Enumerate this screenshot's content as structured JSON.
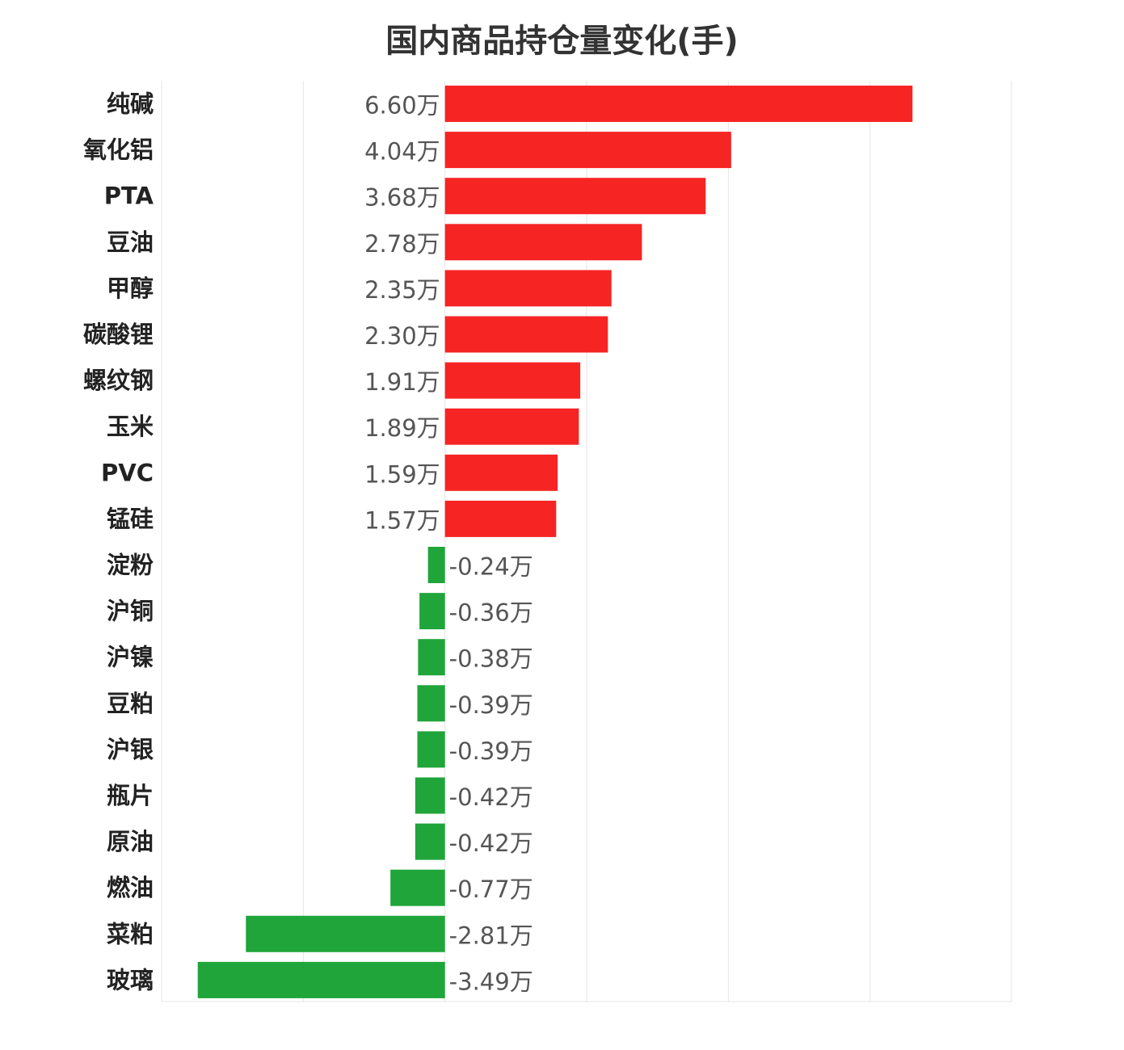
{
  "chart_data": {
    "type": "bar",
    "orientation": "horizontal",
    "title": "国内商品持仓量变化(手)",
    "xlabel": "",
    "ylabel": "",
    "unit_suffix": "万",
    "xlim": [
      -4,
      8
    ],
    "grid": true,
    "categories": [
      "纯碱",
      "氧化铝",
      "PTA",
      "豆油",
      "甲醇",
      "碳酸锂",
      "螺纹钢",
      "玉米",
      "PVC",
      "锰硅",
      "淀粉",
      "沪铜",
      "沪镍",
      "豆粕",
      "沪银",
      "瓶片",
      "原油",
      "燃油",
      "菜粕",
      "玻璃"
    ],
    "values": [
      6.6,
      4.04,
      3.68,
      2.78,
      2.35,
      2.3,
      1.91,
      1.89,
      1.59,
      1.57,
      -0.24,
      -0.36,
      -0.38,
      -0.39,
      -0.39,
      -0.42,
      -0.42,
      -0.77,
      -2.81,
      -3.49
    ],
    "value_labels": [
      "6.60万",
      "4.04万",
      "3.68万",
      "2.78万",
      "2.35万",
      "2.30万",
      "1.91万",
      "1.89万",
      "1.59万",
      "1.57万",
      "-0.24万",
      "-0.36万",
      "-0.38万",
      "-0.39万",
      "-0.39万",
      "-0.42万",
      "-0.42万",
      "-0.77万",
      "-2.81万",
      "-3.49万"
    ],
    "colors": {
      "positive": "#f72424",
      "negative": "#20a53a",
      "grid": "#e6e6e6"
    }
  }
}
